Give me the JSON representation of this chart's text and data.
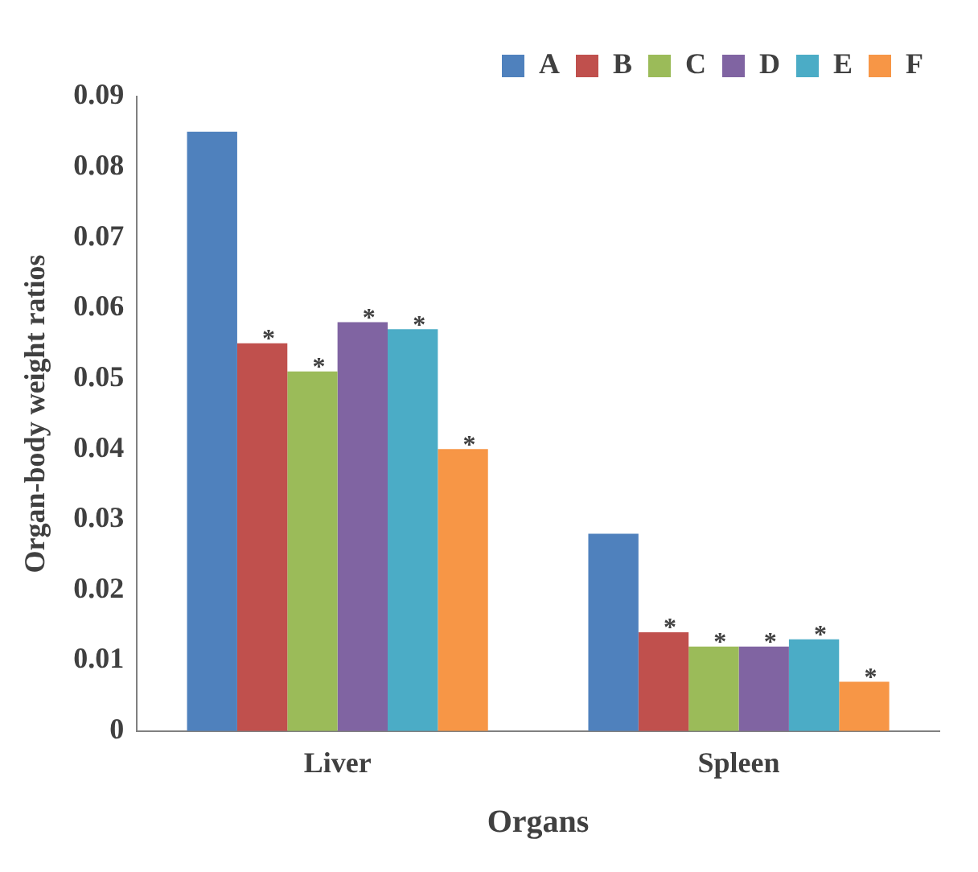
{
  "chart_data": {
    "type": "bar",
    "xlabel": "Organs",
    "ylabel": "Organ-body weight ratios",
    "categories": [
      "Liver",
      "Spleen"
    ],
    "series": [
      {
        "name": "A",
        "color": "#4f81bd",
        "values": [
          0.085,
          0.028
        ]
      },
      {
        "name": "B",
        "color": "#c0504d",
        "values": [
          0.055,
          0.014
        ],
        "value_labels": [
          "*",
          "*"
        ]
      },
      {
        "name": "C",
        "color": "#9bbb59",
        "values": [
          0.051,
          0.012
        ],
        "value_labels": [
          "*",
          "*"
        ]
      },
      {
        "name": "D",
        "color": "#8064a2",
        "values": [
          0.058,
          0.012
        ],
        "value_labels": [
          "*",
          "*"
        ]
      },
      {
        "name": "E",
        "color": "#4bacc6",
        "values": [
          0.057,
          0.013
        ],
        "value_labels": [
          "*",
          "*"
        ]
      },
      {
        "name": "F",
        "color": "#f79646",
        "values": [
          0.04,
          0.007
        ],
        "value_labels": [
          "*",
          "*"
        ]
      }
    ],
    "ylim": [
      0,
      0.09
    ],
    "yticks": [
      0,
      0.01,
      0.02,
      0.03,
      0.04,
      0.05,
      0.06,
      0.07,
      0.08,
      0.09
    ],
    "grid": false,
    "legend": "top right"
  }
}
